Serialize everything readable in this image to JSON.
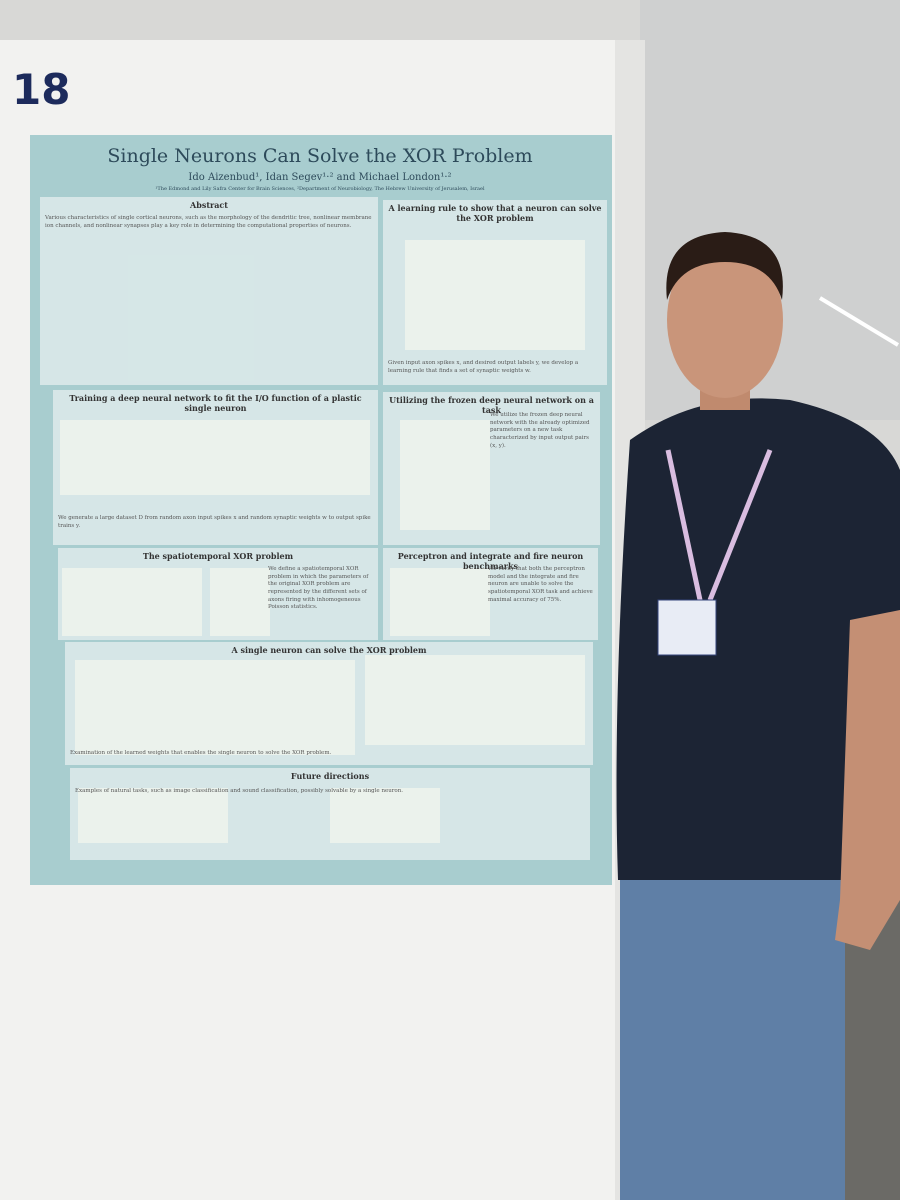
{
  "booth_number": "18",
  "poster": {
    "title": "Single Neurons Can Solve the XOR Problem",
    "authors": "Ido Aizenbud¹, Idan Segev¹·² and Michael London¹·²",
    "affiliation": "¹The Edmond and Lily Safra Center for Brain Sciences, ²Department of Neurobiology, The Hebrew University of Jerusalem, Israel",
    "sections": [
      {
        "heading": "Abstract",
        "text": "Various characteristics of single cortical neurons, such as the morphology of the dendritic tree, nonlinear membrane ion channels, and nonlinear synapses play a key role in determining the computational properties of neurons."
      },
      {
        "heading": "A learning rule to show that a neuron can solve the XOR problem",
        "text": "Given input axon spikes x, and desired output labels y, we develop a learning rule that finds a set of synaptic weights w."
      },
      {
        "heading": "Training a deep neural network to fit the I/O function of a plastic single neuron",
        "text": "We generate a large dataset D from random axon input spikes x and random synaptic weights w to output spike trains y."
      },
      {
        "heading": "Utilizing the frozen deep neural network on a task",
        "text": "We utilize the frozen deep neural network with the already optimized parameters on a new task characterized by input output pairs (x, y)."
      },
      {
        "heading": "The spatiotemporal XOR problem",
        "text": "We define a spatiotemporal XOR problem in which the parameters of the original XOR problem are represented by the different sets of axons firing with inhomogeneous Poisson statistics."
      },
      {
        "heading": "Perceptron and integrate and fire neuron benchmarks",
        "text": "We verify that both the perceptron model and the integrate and fire neuron are unable to solve the spatiotemporal XOR task and achieve maximal accuracy of 75%."
      },
      {
        "heading": "A single neuron can solve the XOR problem",
        "text": "Examination of the learned weights that enables the single neuron to solve the XOR problem."
      },
      {
        "heading": "Future directions",
        "text": "Examples of natural tasks, such as image classification and sound classification, possibly solvable by a single neuron."
      }
    ]
  }
}
